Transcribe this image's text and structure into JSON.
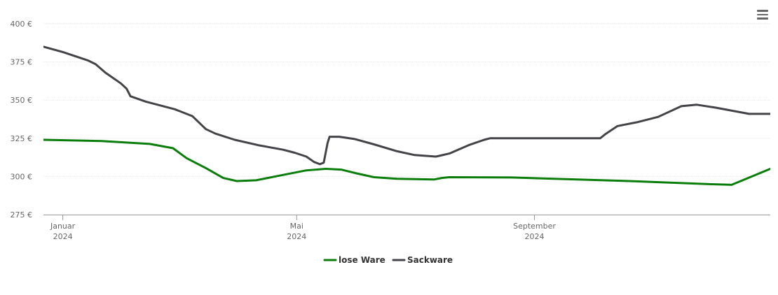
{
  "menu": {
    "icon": "hamburger-menu-icon"
  },
  "chart_data": {
    "type": "line",
    "y_unit_suffix": " €",
    "ylim": [
      275,
      400
    ],
    "yticks": [
      275,
      300,
      325,
      350,
      375,
      400
    ],
    "ytick_labels": [
      "275 €",
      "300 €",
      "325 €",
      "350 €",
      "375 €",
      "400 €"
    ],
    "grid": true,
    "xlim": [
      "2023-12-22",
      "2025-01-01"
    ],
    "xticks": [
      {
        "date": "2024-01-01",
        "label1": "Januar",
        "label2": "2024"
      },
      {
        "date": "2024-05-01",
        "label1": "Mai",
        "label2": "2024"
      },
      {
        "date": "2024-09-01",
        "label1": "September",
        "label2": "2024"
      }
    ],
    "legend_position": "bottom-center",
    "series": [
      {
        "name": "lose Ware",
        "color": "#0a7d0a",
        "points": [
          [
            "2023-12-22",
            324
          ],
          [
            "2024-01-21",
            323.2
          ],
          [
            "2024-02-15",
            321.3
          ],
          [
            "2024-02-27",
            318.5
          ],
          [
            "2024-03-05",
            312
          ],
          [
            "2024-03-15",
            305.5
          ],
          [
            "2024-03-24",
            299
          ],
          [
            "2024-03-31",
            297
          ],
          [
            "2024-04-10",
            297.5
          ],
          [
            "2024-04-24",
            301
          ],
          [
            "2024-05-06",
            304
          ],
          [
            "2024-05-16",
            305
          ],
          [
            "2024-05-24",
            304.5
          ],
          [
            "2024-06-01",
            302
          ],
          [
            "2024-06-10",
            299.5
          ],
          [
            "2024-06-22",
            298.5
          ],
          [
            "2024-07-11",
            298
          ],
          [
            "2024-07-15",
            299
          ],
          [
            "2024-07-19",
            299.5
          ],
          [
            "2024-08-20",
            299.3
          ],
          [
            "2024-10-20",
            297
          ],
          [
            "2024-11-29",
            295
          ],
          [
            "2024-12-12",
            294.5
          ],
          [
            "2025-01-01",
            305
          ]
        ]
      },
      {
        "name": "Sackware",
        "color": "#434348",
        "points": [
          [
            "2023-12-22",
            385
          ],
          [
            "2024-01-01",
            381.5
          ],
          [
            "2024-01-14",
            376
          ],
          [
            "2024-01-18",
            373.5
          ],
          [
            "2024-01-23",
            368
          ],
          [
            "2024-01-31",
            361
          ],
          [
            "2024-02-03",
            357.5
          ],
          [
            "2024-02-05",
            352.5
          ],
          [
            "2024-02-13",
            349
          ],
          [
            "2024-02-28",
            344
          ],
          [
            "2024-03-08",
            339.5
          ],
          [
            "2024-03-15",
            331
          ],
          [
            "2024-03-20",
            328
          ],
          [
            "2024-03-30",
            324
          ],
          [
            "2024-04-11",
            320.5
          ],
          [
            "2024-04-24",
            317.5
          ],
          [
            "2024-04-30",
            315.5
          ],
          [
            "2024-05-06",
            313
          ],
          [
            "2024-05-10",
            309.5
          ],
          [
            "2024-05-13",
            308
          ],
          [
            "2024-05-15",
            309
          ],
          [
            "2024-05-17",
            322
          ],
          [
            "2024-05-18",
            326
          ],
          [
            "2024-05-23",
            326
          ],
          [
            "2024-05-31",
            324.5
          ],
          [
            "2024-06-10",
            321
          ],
          [
            "2024-06-22",
            316.5
          ],
          [
            "2024-07-01",
            314
          ],
          [
            "2024-07-12",
            313
          ],
          [
            "2024-07-19",
            315
          ],
          [
            "2024-07-29",
            320.5
          ],
          [
            "2024-08-06",
            324
          ],
          [
            "2024-08-09",
            325
          ],
          [
            "2024-10-05",
            325
          ],
          [
            "2024-10-08",
            328
          ],
          [
            "2024-10-14",
            333
          ],
          [
            "2024-10-24",
            335.5
          ],
          [
            "2024-11-04",
            339
          ],
          [
            "2024-11-16",
            346
          ],
          [
            "2024-11-24",
            347
          ],
          [
            "2024-12-04",
            345
          ],
          [
            "2024-12-21",
            341
          ],
          [
            "2025-01-07",
            340.5
          ],
          [
            "2025-01-25",
            338.5
          ],
          [
            "2025-02-16",
            335
          ],
          [
            "2025-01-01",
            341
          ]
        ]
      }
    ]
  }
}
